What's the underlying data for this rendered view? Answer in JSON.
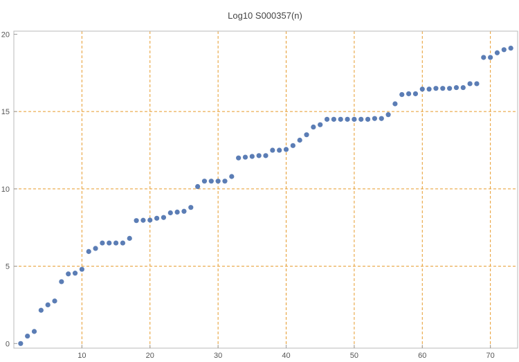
{
  "chart_data": {
    "type": "scatter",
    "title": "Log10 S000357(n)",
    "xlabel": "",
    "ylabel": "",
    "xlim": [
      0,
      74
    ],
    "ylim": [
      -0.3,
      20.2
    ],
    "x_ticks": [
      10,
      20,
      30,
      40,
      50,
      60,
      70
    ],
    "y_ticks": [
      0,
      5,
      10,
      15,
      20
    ],
    "x_grid": [
      10,
      20,
      30,
      40,
      50,
      60,
      70
    ],
    "y_grid": [
      5,
      10,
      15
    ],
    "series": [
      {
        "color": "#5b7db5",
        "x": [
          1,
          2,
          3,
          4,
          5,
          6,
          7,
          8,
          9,
          10,
          11,
          12,
          13,
          14,
          15,
          16,
          17,
          18,
          19,
          20,
          21,
          22,
          23,
          24,
          25,
          26,
          27,
          28,
          29,
          30,
          31,
          32,
          33,
          34,
          35,
          36,
          37,
          38,
          39,
          40,
          41,
          42,
          43,
          44,
          45,
          46,
          47,
          48,
          49,
          50,
          51,
          52,
          53,
          54,
          55,
          56,
          57,
          58,
          59,
          60,
          61,
          62,
          63,
          64,
          65,
          66,
          67,
          68,
          69,
          70,
          71,
          72,
          73
        ],
        "y": [
          0.0,
          0.48,
          0.78,
          2.15,
          2.5,
          2.75,
          4.0,
          4.5,
          4.55,
          4.8,
          5.95,
          6.15,
          6.5,
          6.5,
          6.5,
          6.5,
          6.8,
          7.95,
          7.97,
          7.98,
          8.1,
          8.15,
          8.45,
          8.5,
          8.55,
          8.8,
          10.15,
          10.5,
          10.5,
          10.5,
          10.5,
          10.8,
          12.0,
          12.05,
          12.1,
          12.15,
          12.15,
          12.5,
          12.5,
          12.55,
          12.8,
          13.15,
          13.5,
          14.0,
          14.15,
          14.5,
          14.5,
          14.5,
          14.5,
          14.5,
          14.5,
          14.5,
          14.55,
          14.55,
          14.8,
          15.5,
          16.1,
          16.15,
          16.15,
          16.45,
          16.45,
          16.5,
          16.5,
          16.5,
          16.55,
          16.55,
          16.8,
          16.8,
          18.5,
          18.5,
          18.8,
          19.0,
          19.1
        ]
      }
    ]
  }
}
